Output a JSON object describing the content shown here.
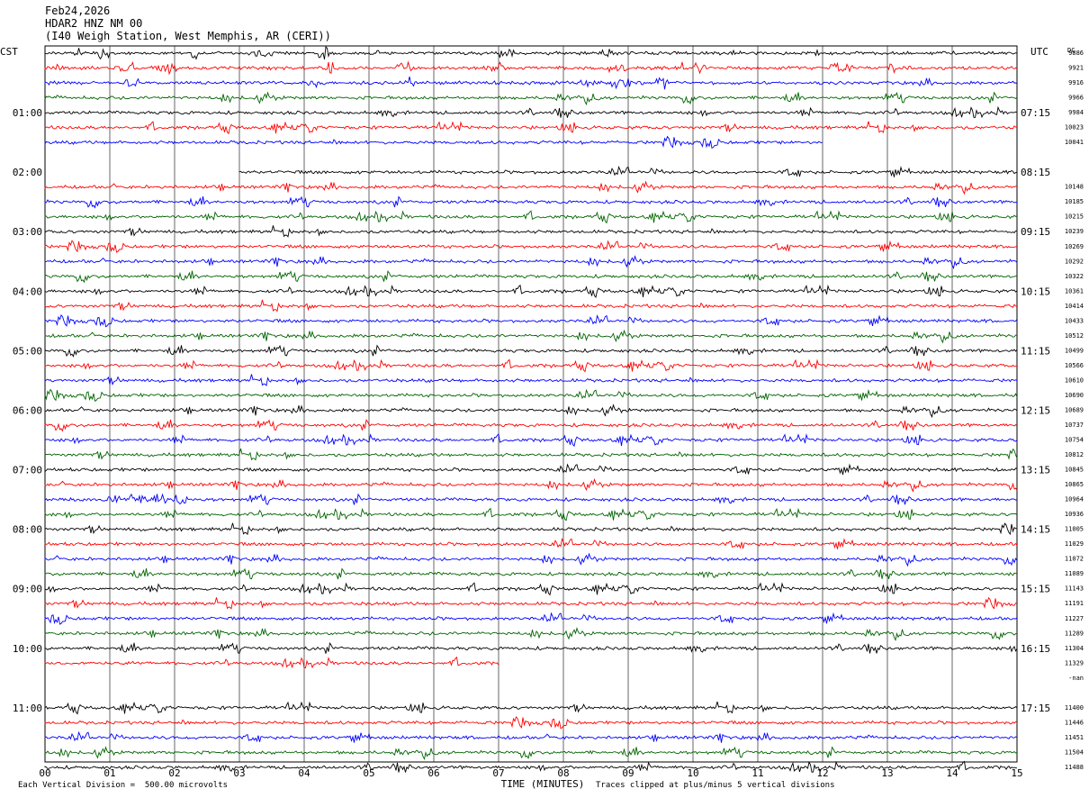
{
  "header": {
    "date": "Feb24,2026",
    "station": "HDAR2 HNZ NM 00",
    "location": "(I40 Weigh Station, West Memphis, AR (CERI))"
  },
  "chart_data": {
    "type": "line",
    "title": "Feb24,2026",
    "left_timezone_label": "CST",
    "right_timezone_label": "UTC",
    "dc_column_label": "DC",
    "xlabel": "TIME (MINUTES)",
    "x_ticks": [
      "00",
      "01",
      "02",
      "03",
      "04",
      "05",
      "06",
      "07",
      "08",
      "09",
      "10",
      "11",
      "12",
      "13",
      "14",
      "15"
    ],
    "xlim": [
      0,
      15
    ],
    "minutes_per_line": 15,
    "colors": [
      "#000000",
      "#ff0000",
      "#0000ff",
      "#006400"
    ],
    "left_hour_labels": [
      "01:00",
      "02:00",
      "03:00",
      "04:00",
      "05:00",
      "06:00",
      "07:00",
      "08:00",
      "09:00",
      "10:00",
      "11:00"
    ],
    "right_hour_labels": [
      "07:15",
      "08:15",
      "09:15",
      "10:15",
      "11:15",
      "12:15",
      "13:15",
      "14:15",
      "15:15",
      "16:15",
      "17:15"
    ],
    "dc_offsets": [
      "9886",
      "9921",
      "9916",
      "9966",
      "9984",
      "10023",
      "10041",
      "",
      "",
      "10148",
      "10185",
      "10215",
      "10239",
      "10269",
      "10292",
      "10322",
      "10361",
      "10414",
      "10433",
      "10512",
      "10499",
      "10566",
      "10610",
      "10690",
      "10689",
      "10737",
      "10754",
      "10812",
      "10845",
      "10865",
      "10964",
      "10936",
      "11005",
      "11029",
      "11072",
      "11089",
      "11143",
      "11191",
      "11227",
      "11289",
      "11304",
      "11329",
      "-nan",
      "",
      "11400",
      "11446",
      "11451",
      "11504",
      "11488"
    ],
    "trace_extents": [
      [
        0,
        15
      ],
      [
        0,
        15
      ],
      [
        0,
        15
      ],
      [
        0,
        15
      ],
      [
        0,
        15
      ],
      [
        0,
        15
      ],
      [
        0,
        12
      ],
      null,
      [
        3,
        15
      ],
      [
        0,
        15
      ],
      [
        0,
        15
      ],
      [
        0,
        15
      ],
      [
        0,
        15
      ],
      [
        0,
        15
      ],
      [
        0,
        15
      ],
      [
        0,
        15
      ],
      [
        0,
        15
      ],
      [
        0,
        15
      ],
      [
        0,
        15
      ],
      [
        0,
        15
      ],
      [
        0,
        15
      ],
      [
        0,
        15
      ],
      [
        0,
        15
      ],
      [
        0,
        15
      ],
      [
        0,
        15
      ],
      [
        0,
        15
      ],
      [
        0,
        15
      ],
      [
        0,
        15
      ],
      [
        0,
        15
      ],
      [
        0,
        15
      ],
      [
        0,
        15
      ],
      [
        0,
        15
      ],
      [
        0,
        15
      ],
      [
        0,
        15
      ],
      [
        0,
        15
      ],
      [
        0,
        15
      ],
      [
        0,
        15
      ],
      [
        0,
        15
      ],
      [
        0,
        15
      ],
      [
        0,
        15
      ],
      [
        0,
        15
      ],
      [
        0,
        7
      ],
      null,
      null,
      [
        0,
        15
      ],
      [
        0,
        15
      ],
      [
        0,
        15
      ],
      [
        0,
        15
      ],
      [
        0,
        15
      ]
    ],
    "footer_scale": "Each Vertical Division =  500.00 microvolts",
    "footer_clip": "Traces clipped at plus/minus 5 vertical divisions",
    "grid": true
  }
}
